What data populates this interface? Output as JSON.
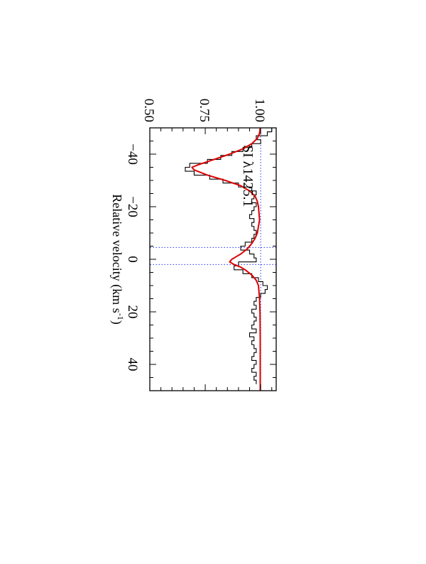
{
  "chart_data": {
    "type": "line",
    "orientation": "rotated-90-clockwise",
    "title": "",
    "annotation_parts": [
      "SI ",
      "λ",
      "1425.1"
    ],
    "xlabel_parts": [
      "Relative velocity (km s",
      "-1",
      ")"
    ],
    "ylabel": "",
    "xlim": [
      -50,
      50
    ],
    "ylim": [
      0.5,
      1.07
    ],
    "x_ticks": [
      -40,
      -20,
      0,
      20,
      40
    ],
    "x_tick_labels": [
      "−40",
      "−20",
      "0",
      "20",
      "40"
    ],
    "y_ticks": [
      0.5,
      0.75,
      1.0
    ],
    "y_tick_labels": [
      "0.50",
      "0.75",
      "1.00"
    ],
    "continuum": 1.0,
    "component_velocities": [
      -4.5,
      2.0
    ],
    "colors": {
      "data": "#000000",
      "fit": "#dd0000",
      "guide": "#2233ff",
      "axes": "#000000"
    },
    "series": [
      {
        "style": "histogram",
        "color": "#000000",
        "x": [
          -50,
          -48.5,
          -47,
          -45.5,
          -44,
          -42.5,
          -41,
          -39.5,
          -38,
          -36.5,
          -35,
          -33.5,
          -32,
          -30.5,
          -29,
          -27.5,
          -26,
          -24.5,
          -23,
          -21.5,
          -20,
          -18.5,
          -17,
          -15.5,
          -14,
          -12.5,
          -11,
          -9.5,
          -8,
          -6.5,
          -5,
          -3.5,
          -2,
          -0.5,
          1,
          2.5,
          4,
          5.5,
          7,
          8.5,
          10,
          11.5,
          13,
          14.5,
          16,
          17.5,
          19,
          20.5,
          22,
          23.5,
          25,
          26.5,
          28,
          29.5,
          31,
          32.5,
          34,
          35.5,
          37,
          38.5,
          40,
          41.5,
          43,
          44.5,
          46
        ],
        "y": [
          1.05,
          1.03,
          0.98,
          1.0,
          0.96,
          0.92,
          0.87,
          0.82,
          0.76,
          0.68,
          0.66,
          0.7,
          0.77,
          0.83,
          0.9,
          0.96,
          0.98,
          0.97,
          0.96,
          0.98,
          0.97,
          0.96,
          0.95,
          0.97,
          0.96,
          0.97,
          0.98,
          0.97,
          0.96,
          0.93,
          0.91,
          0.95,
          0.97,
          0.98,
          0.9,
          0.88,
          0.92,
          0.96,
          0.99,
          1.01,
          1.03,
          1.02,
          1.0,
          0.98,
          0.97,
          0.98,
          0.96,
          0.97,
          0.98,
          0.97,
          0.96,
          0.98,
          0.95,
          0.97,
          0.96,
          0.97,
          0.98,
          0.97,
          0.96,
          0.98,
          0.97,
          0.96,
          0.98,
          0.97,
          0.98
        ]
      },
      {
        "style": "smooth",
        "color": "#dd0000",
        "x": [
          -50,
          -48,
          -46,
          -44,
          -42,
          -40,
          -38,
          -36,
          -35,
          -34,
          -32,
          -30,
          -28,
          -26,
          -24,
          -22,
          -20,
          -15,
          -10,
          -8,
          -6,
          -4,
          -2,
          -1,
          0,
          1,
          2,
          3,
          4,
          6,
          8,
          10,
          15,
          20,
          30,
          40,
          50
        ],
        "y": [
          0.998,
          0.995,
          0.985,
          0.96,
          0.92,
          0.86,
          0.79,
          0.72,
          0.69,
          0.7,
          0.76,
          0.84,
          0.91,
          0.95,
          0.975,
          0.985,
          0.99,
          0.995,
          0.985,
          0.975,
          0.96,
          0.94,
          0.91,
          0.89,
          0.87,
          0.86,
          0.88,
          0.91,
          0.93,
          0.96,
          0.98,
          0.99,
          0.995,
          0.997,
          0.998,
          0.998,
          0.998
        ]
      }
    ]
  }
}
